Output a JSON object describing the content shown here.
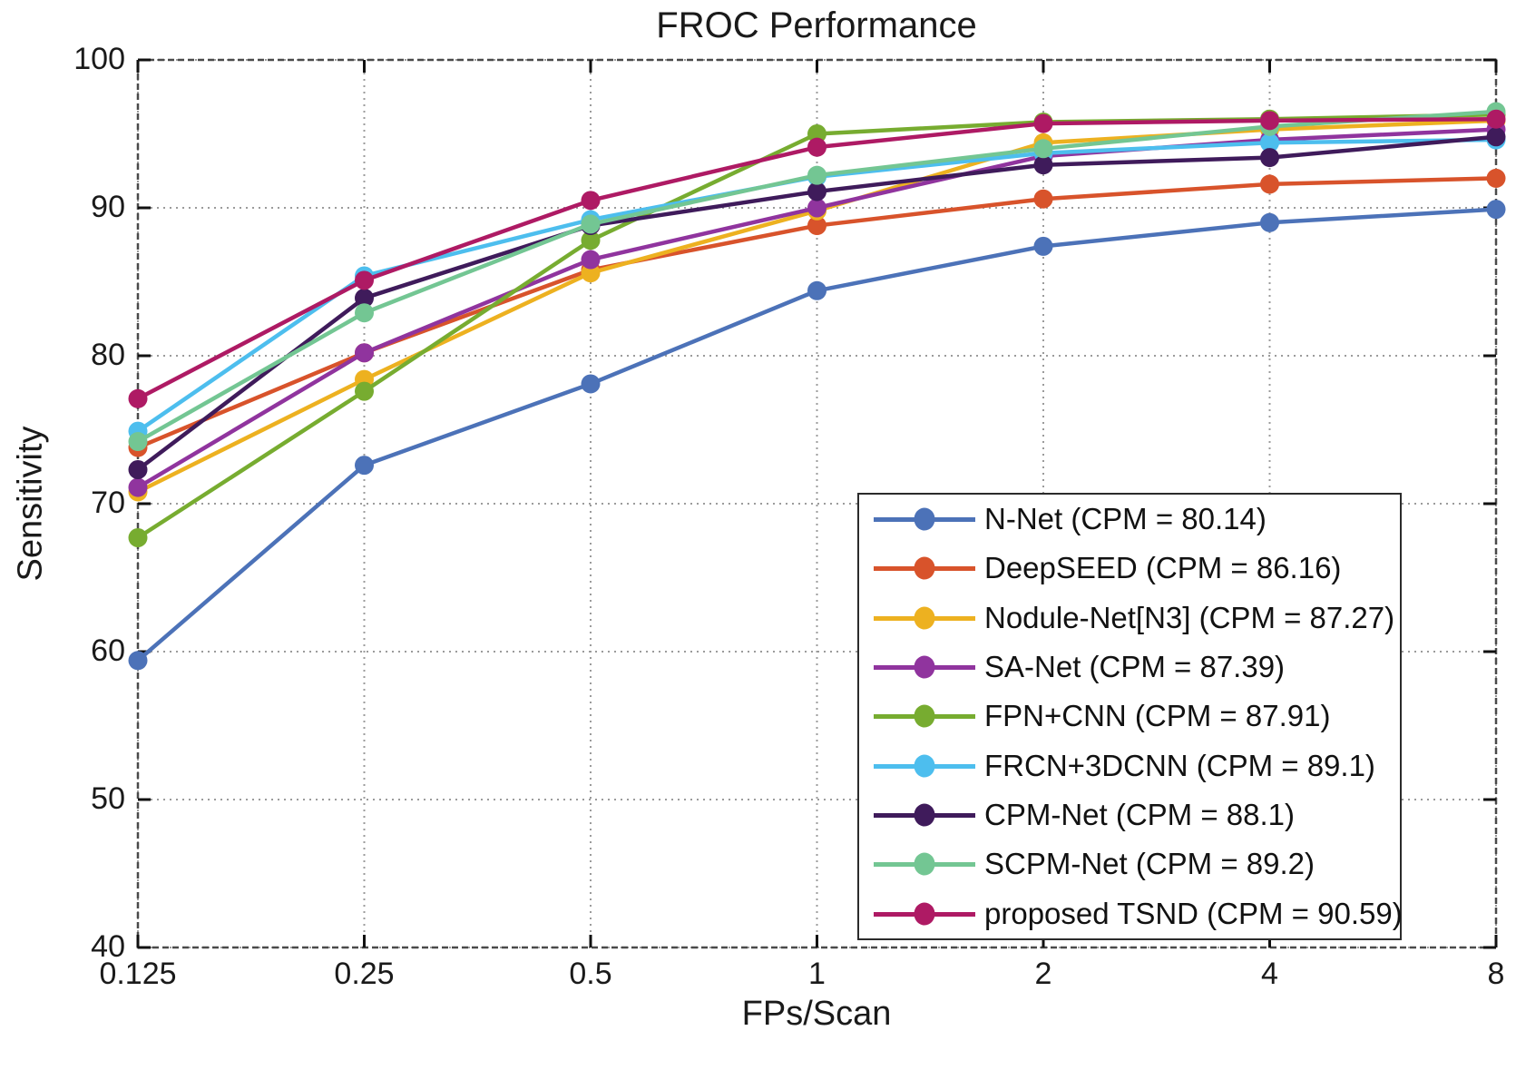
{
  "title": "FROC Performance",
  "axes": {
    "xlabel": "FPs/Scan",
    "ylabel": "Sensitivity"
  },
  "chart_data": {
    "type": "line",
    "title": "FROC Performance",
    "xlabel": "FPs/Scan",
    "ylabel": "Sensitivity",
    "x_scale": "log2",
    "x": [
      0.125,
      0.25,
      0.5,
      1,
      2,
      4,
      8
    ],
    "x_tick_labels": [
      "0.125",
      "0.25",
      "0.5",
      "1",
      "2",
      "4",
      "8"
    ],
    "y_ticks": [
      40,
      50,
      60,
      70,
      80,
      90,
      100
    ],
    "ylim": [
      40,
      100
    ],
    "grid": "dotted",
    "legend_position": "lower-right",
    "marker": "filled-circle",
    "series": [
      {
        "name": "N-Net (CPM = 80.14)",
        "color": "#4C72B8",
        "values": [
          59.4,
          72.6,
          78.1,
          84.4,
          87.4,
          89.0,
          89.9
        ]
      },
      {
        "name": "DeepSEED (CPM = 86.16)",
        "color": "#D8532B",
        "values": [
          73.8,
          80.2,
          85.8,
          88.8,
          90.6,
          91.6,
          92.0
        ]
      },
      {
        "name": "Nodule-Net[N3] (CPM = 87.27)",
        "color": "#EDB120",
        "values": [
          70.8,
          78.4,
          85.6,
          89.8,
          94.4,
          95.3,
          95.9
        ]
      },
      {
        "name": "SA-Net (CPM = 87.39)",
        "color": "#90349E",
        "values": [
          71.1,
          80.2,
          86.5,
          90.0,
          93.5,
          94.6,
          95.3
        ]
      },
      {
        "name": "FPN+CNN (CPM = 87.91)",
        "color": "#77AC30",
        "values": [
          67.7,
          77.6,
          87.8,
          95.0,
          95.8,
          96.0,
          96.3
        ]
      },
      {
        "name": "FRCN+3DCNN (CPM = 89.1)",
        "color": "#4DBEEE",
        "values": [
          74.9,
          85.4,
          89.2,
          92.1,
          93.7,
          94.4,
          94.6
        ]
      },
      {
        "name": "CPM-Net (CPM = 88.1)",
        "color": "#3F1B5B",
        "values": [
          72.3,
          83.9,
          88.8,
          91.1,
          92.9,
          93.4,
          94.8
        ]
      },
      {
        "name": "SCPM-Net (CPM = 89.2)",
        "color": "#73C693",
        "values": [
          74.2,
          82.9,
          88.9,
          92.2,
          94.0,
          95.5,
          96.5
        ]
      },
      {
        "name": "proposed TSND (CPM = 90.59)",
        "color": "#AE1A64",
        "values": [
          77.1,
          85.1,
          90.5,
          94.1,
          95.7,
          95.9,
          96.0
        ]
      }
    ]
  },
  "style_colors": {
    "grid": "#9b9b9b",
    "spine": "#4a4a4a",
    "tick": "#111111",
    "legend_border": "#2b2b2b"
  }
}
